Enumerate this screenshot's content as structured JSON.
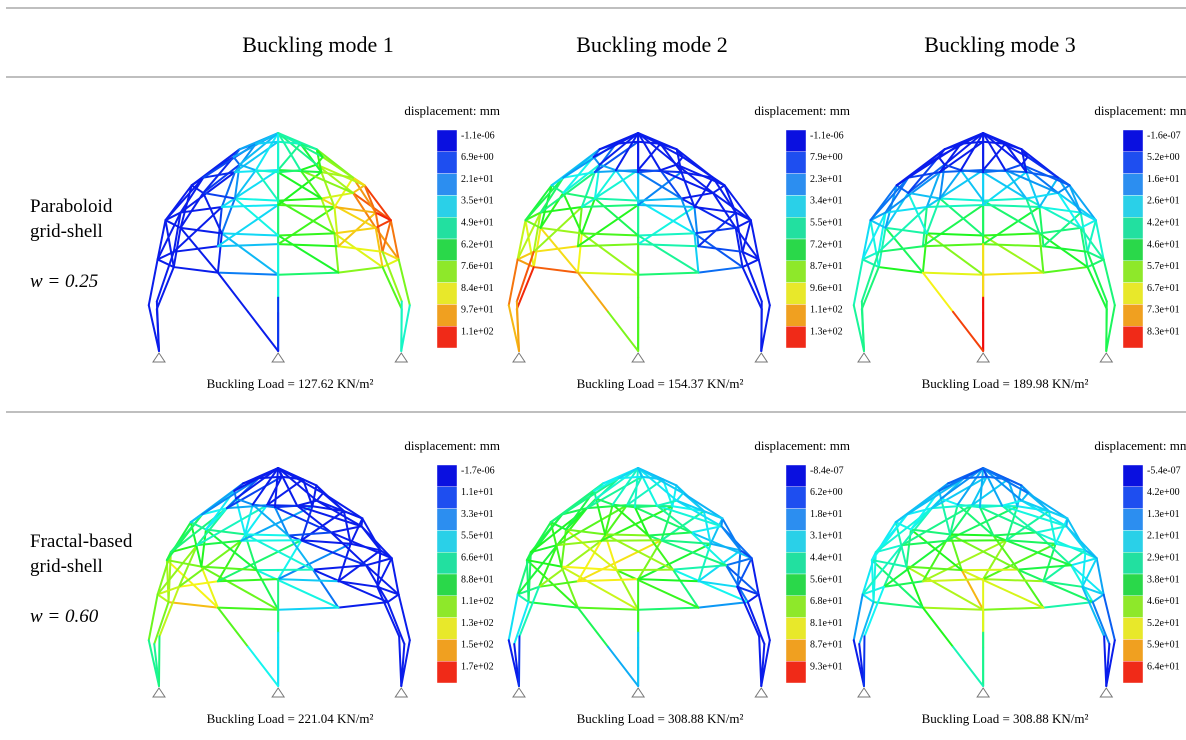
{
  "header": {
    "columns": [
      "Buckling mode 1",
      "Buckling mode 2",
      "Buckling mode 3"
    ]
  },
  "rows": [
    {
      "label": [
        "Paraboloid",
        "grid-shell"
      ],
      "parameter": "w = 0.25",
      "panels": [
        {
          "legend_title": "displacement: mm",
          "legend_labels": [
            "-1.1e-06",
            "6.9e+00",
            "2.1e+01",
            "3.5e+01",
            "4.9e+01",
            "6.2e+01",
            "7.6e+01",
            "8.4e+01",
            "9.7e+01",
            "1.1e+02"
          ],
          "load": "Buckling Load = 127.62 KN/m²"
        },
        {
          "legend_title": "displacement: mm",
          "legend_labels": [
            "-1.1e-06",
            "7.9e+00",
            "2.3e+01",
            "3.4e+01",
            "5.5e+01",
            "7.2e+01",
            "8.7e+01",
            "9.6e+01",
            "1.1e+02",
            "1.3e+02"
          ],
          "load": "Buckling Load = 154.37 KN/m²"
        },
        {
          "legend_title": "displacement: mm",
          "legend_labels": [
            "-1.6e-07",
            "5.2e+00",
            "1.6e+01",
            "2.6e+01",
            "4.2e+01",
            "4.6e+01",
            "5.7e+01",
            "6.7e+01",
            "7.3e+01",
            "8.3e+01"
          ],
          "load": "Buckling Load = 189.98 KN/m²"
        }
      ]
    },
    {
      "label": [
        "Fractal-based",
        "grid-shell"
      ],
      "parameter": "w = 0.60",
      "panels": [
        {
          "legend_title": "displacement: mm",
          "legend_labels": [
            "-1.7e-06",
            "1.1e+01",
            "3.3e+01",
            "5.5e+01",
            "6.6e+01",
            "8.8e+01",
            "1.1e+02",
            "1.3e+02",
            "1.5e+02",
            "1.7e+02"
          ],
          "load": "Buckling Load = 221.04 KN/m²"
        },
        {
          "legend_title": "displacement: mm",
          "legend_labels": [
            "-8.4e-07",
            "6.2e+00",
            "1.8e+01",
            "3.1e+01",
            "4.4e+01",
            "5.6e+01",
            "6.8e+01",
            "8.1e+01",
            "8.7e+01",
            "9.3e+01"
          ],
          "load": "Buckling Load = 308.88 KN/m²"
        },
        {
          "legend_title": "displacement: mm",
          "legend_labels": [
            "-5.4e-07",
            "4.2e+00",
            "1.3e+01",
            "2.1e+01",
            "2.9e+01",
            "3.8e+01",
            "4.6e+01",
            "5.2e+01",
            "5.9e+01",
            "6.4e+01"
          ],
          "load": "Buckling Load = 308.88 KN/m²"
        }
      ]
    }
  ]
}
